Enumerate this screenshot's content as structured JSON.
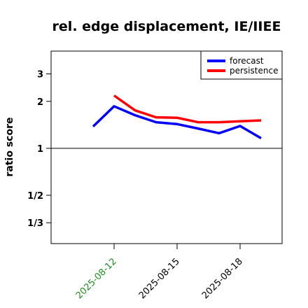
{
  "chart_data": {
    "type": "line",
    "title": "rel. edge displacement, IE/IIEE",
    "xlabel": "",
    "ylabel": "ratio score",
    "y_scale": "log",
    "y_ticks": [
      {
        "value": 3,
        "label": "3"
      },
      {
        "value": 2,
        "label": "2"
      },
      {
        "value": 1,
        "label": "1"
      },
      {
        "value": 0.5,
        "label": "1/2"
      },
      {
        "value": 0.3333,
        "label": "1/3"
      }
    ],
    "ylim": [
      0.245,
      4.2
    ],
    "reference_line": 1,
    "xlim": [
      "2025-08-09",
      "2025-08-20"
    ],
    "x_ticks": [
      {
        "date": "2025-08-12",
        "label": "2025-08-12",
        "color": "#228b22"
      },
      {
        "date": "2025-08-15",
        "label": "2025-08-15",
        "color": "#000000"
      },
      {
        "date": "2025-08-18",
        "label": "2025-08-18",
        "color": "#000000"
      }
    ],
    "series": [
      {
        "name": "forecast",
        "color": "#0000ff",
        "x": [
          "2025-08-11",
          "2025-08-12",
          "2025-08-13",
          "2025-08-14",
          "2025-08-15",
          "2025-08-16",
          "2025-08-17",
          "2025-08-18",
          "2025-08-19"
        ],
        "values": [
          1.38,
          1.86,
          1.63,
          1.47,
          1.43,
          1.34,
          1.25,
          1.39,
          1.16
        ]
      },
      {
        "name": "persistence",
        "color": "#ff0000",
        "x": [
          "2025-08-12",
          "2025-08-13",
          "2025-08-14",
          "2025-08-15",
          "2025-08-16",
          "2025-08-17",
          "2025-08-18",
          "2025-08-19"
        ],
        "values": [
          2.18,
          1.75,
          1.58,
          1.57,
          1.47,
          1.47,
          1.49,
          1.51
        ]
      }
    ],
    "legend_position": "top-right",
    "grid": false
  }
}
